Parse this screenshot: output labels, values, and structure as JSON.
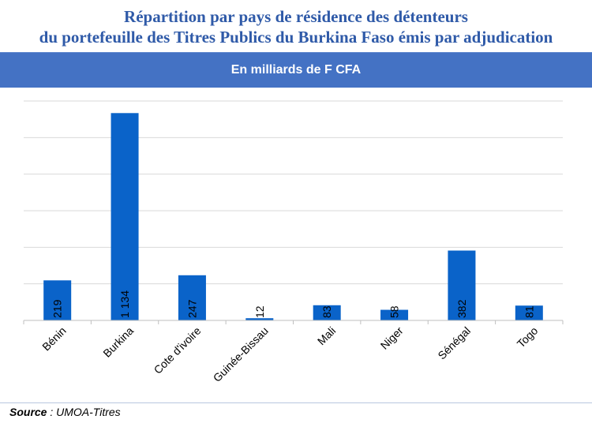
{
  "header": {
    "title_line1": "Répartition par pays de résidence des détenteurs",
    "title_line2": "du portefeuille des Titres Publics du Burkina Faso émis par adjudication",
    "unit_banner": "En milliards de F CFA"
  },
  "footer": {
    "source_label": "Source",
    "source_text": " : UMOA-Titres"
  },
  "colors": {
    "bar": "#0a63c9",
    "title": "#2f5aa8",
    "banner": "#4472c4",
    "grid": "#d9d9d9"
  },
  "chart_data": {
    "type": "bar",
    "categories": [
      "Bénin",
      "Burkina",
      "Cote d'ivoire",
      "Guinée-Bissau",
      "Mali",
      "Niger",
      "Sénégal",
      "Togo"
    ],
    "values": [
      219,
      1134,
      247,
      12,
      83,
      58,
      382,
      81
    ],
    "labels": [
      "219",
      "1 134",
      "247",
      "12",
      "83",
      "58",
      "382",
      "81"
    ],
    "title": "",
    "xlabel": "",
    "ylabel": "",
    "ylim": [
      0,
      1200
    ],
    "grid": true,
    "legend": "none"
  }
}
